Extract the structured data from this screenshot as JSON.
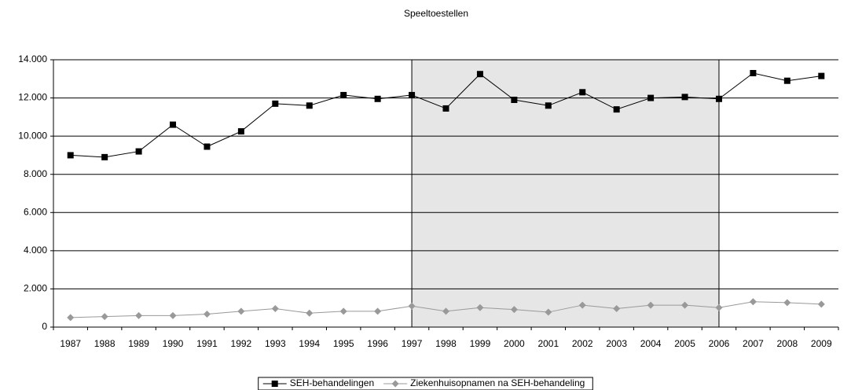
{
  "chart_data": {
    "type": "line",
    "title": "Speeltoestellen",
    "categories": [
      "1987",
      "1988",
      "1989",
      "1990",
      "1991",
      "1992",
      "1993",
      "1994",
      "1995",
      "1996",
      "1997",
      "1998",
      "1999",
      "2000",
      "2001",
      "2002",
      "2003",
      "2004",
      "2005",
      "2006",
      "2007",
      "2008",
      "2009"
    ],
    "series": [
      {
        "name": "SEH-behandelingen",
        "color": "#000000",
        "marker": "square",
        "values": [
          9000,
          8900,
          9200,
          10600,
          9450,
          10250,
          11700,
          11600,
          12150,
          11950,
          12150,
          11450,
          13250,
          11900,
          11600,
          12300,
          11400,
          12000,
          12050,
          11950,
          13300,
          12900,
          13150
        ]
      },
      {
        "name": "Ziekenhuisopnamen na SEH-behandeling",
        "color": "#999999",
        "marker": "diamond",
        "values": [
          500,
          550,
          600,
          600,
          680,
          830,
          970,
          730,
          830,
          830,
          1100,
          830,
          1020,
          920,
          780,
          1150,
          970,
          1150,
          1150,
          1020,
          1330,
          1280,
          1200
        ]
      }
    ],
    "ylim": [
      0,
      14000
    ],
    "yticks": [
      0,
      {
        "value": 2000,
        "label": "2.000"
      },
      {
        "value": 4000,
        "label": "4.000"
      },
      {
        "value": 6000,
        "label": "6.000"
      },
      {
        "value": 8000,
        "label": "8.000"
      },
      {
        "value": 10000,
        "label": "10.000"
      },
      {
        "value": 12000,
        "label": "12.000"
      },
      {
        "value": 14000,
        "label": "14.000"
      }
    ],
    "grid": true,
    "highlight": [
      "1997",
      "2006"
    ],
    "legend": "bottom"
  }
}
